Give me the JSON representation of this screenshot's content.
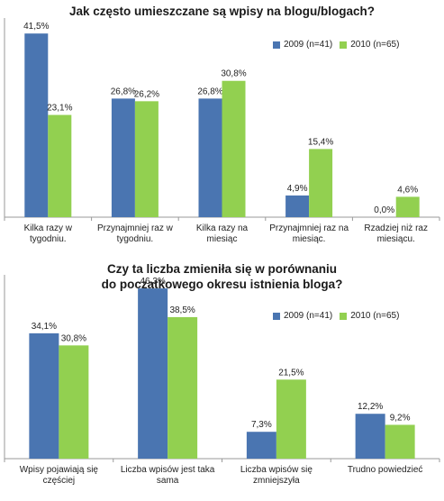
{
  "colors": {
    "series_2009": "#4A75B1",
    "series_2010": "#92D050",
    "axis": "#9a9a9a"
  },
  "chart_data": [
    {
      "type": "bar",
      "title": "Jak często umieszczane są wpisy na blogu/blogach?",
      "categories": [
        "Kilka razy w\ntygodniu.",
        "Przynajmniej raz w\ntygodniu.",
        "Kilka razy na\nmiesiąc",
        "Przynajmniej raz na\nmiesiąc.",
        "Rzadziej niż raz\nmiesiącu."
      ],
      "series": [
        {
          "name": "2009 (n=41)",
          "values": [
            41.5,
            26.8,
            26.8,
            4.9,
            0.0
          ],
          "labels": [
            "41,5%",
            "26,8%",
            "26,8%",
            "4,9%",
            "0,0%"
          ]
        },
        {
          "name": "2010 (n=65)",
          "values": [
            23.1,
            26.2,
            30.8,
            15.4,
            4.6
          ],
          "labels": [
            "23,1%",
            "26,2%",
            "30,8%",
            "15,4%",
            "4,6%"
          ]
        }
      ],
      "ylim": [
        0,
        45
      ],
      "legend": "top-right",
      "grid": false
    },
    {
      "type": "bar",
      "title": "Czy ta liczba zmieniła się w porównaniu\ndo początkowego okresu istnienia bloga?",
      "categories": [
        "Wpisy pojawiają się\nczęściej",
        "Liczba wpisów jest taka\nsama",
        "Liczba wpisów się\nzmniejszyła",
        "Trudno powiedzieć"
      ],
      "series": [
        {
          "name": "2009 (n=41)",
          "values": [
            34.1,
            46.3,
            7.3,
            12.2
          ],
          "labels": [
            "34,1%",
            "46,3%",
            "7,3%",
            "12,2%"
          ]
        },
        {
          "name": "2010 (n=65)",
          "values": [
            30.8,
            38.5,
            21.5,
            9.2
          ],
          "labels": [
            "30,8%",
            "38,5%",
            "21,5%",
            "9,2%"
          ]
        }
      ],
      "ylim": [
        0,
        50
      ],
      "legend": "top-right",
      "grid": false
    }
  ]
}
